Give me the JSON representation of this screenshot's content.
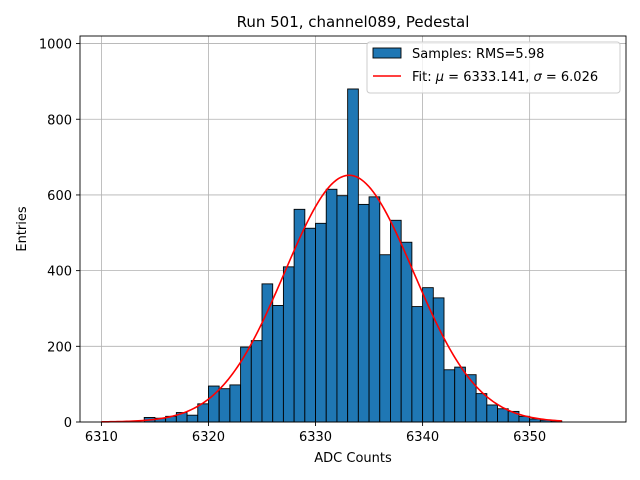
{
  "chart_data": {
    "type": "bar",
    "title": "Run 501, channel089, Pedestal",
    "xlabel": "ADC Counts",
    "ylabel": "Entries",
    "xlim": [
      6308,
      6359
    ],
    "ylim": [
      0,
      1020
    ],
    "xticks": [
      6310,
      6320,
      6330,
      6340,
      6350
    ],
    "yticks": [
      0,
      200,
      400,
      600,
      800,
      1000
    ],
    "grid": true,
    "legend_position": "top-right",
    "colors": {
      "bar_fill": "#1f77b4",
      "bar_edge": "#000000",
      "fit_line": "#ff0000",
      "grid": "#b0b0b0"
    },
    "histogram": {
      "name": "Samples: RMS=5.98",
      "bin_width": 1,
      "bin_starts": [
        6314,
        6315,
        6316,
        6317,
        6318,
        6319,
        6320,
        6321,
        6322,
        6323,
        6324,
        6325,
        6326,
        6327,
        6328,
        6329,
        6330,
        6331,
        6332,
        6333,
        6334,
        6335,
        6336,
        6337,
        6338,
        6339,
        6340,
        6341,
        6342,
        6343,
        6344,
        6345,
        6346,
        6347,
        6348,
        6349,
        6350,
        6351,
        6352
      ],
      "counts": [
        12,
        10,
        15,
        25,
        18,
        48,
        95,
        88,
        98,
        198,
        215,
        365,
        308,
        410,
        562,
        512,
        525,
        615,
        598,
        880,
        575,
        595,
        442,
        533,
        475,
        305,
        355,
        328,
        138,
        145,
        125,
        75,
        45,
        35,
        28,
        15,
        8,
        5,
        3
      ]
    },
    "fit": {
      "name": "Fit: $\\mu$ = 6333.141, $\\sigma$ = 6.026",
      "legend_prefix": "Fit: ",
      "mu_symbol": "μ",
      "mu_text": " = 6333.141, ",
      "sigma_symbol": "σ",
      "sigma_text": " = 6.026",
      "mu": 6333.141,
      "sigma": 6.026,
      "amplitude": 652,
      "x_range": [
        6310,
        6353
      ]
    }
  }
}
